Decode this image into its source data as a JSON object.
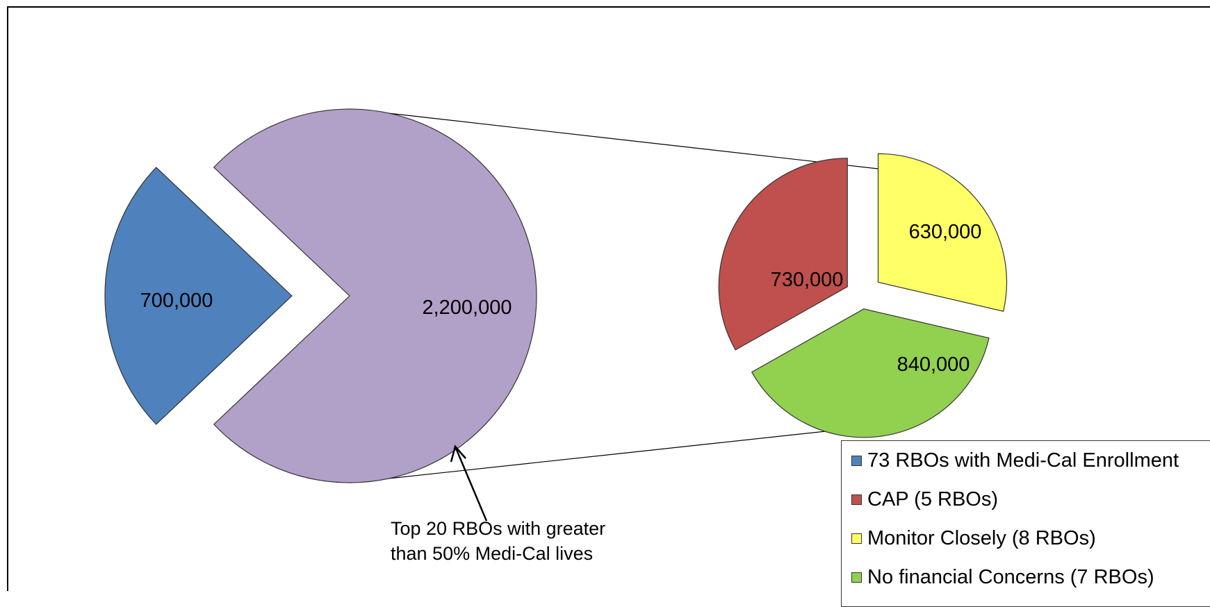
{
  "chart_data": {
    "type": "pie",
    "subtype": "pie-of-pie",
    "main_pie": {
      "slices": [
        {
          "key": "rbo73",
          "value": 700000,
          "label": "700,000",
          "color": "#4F81BD"
        },
        {
          "key": "top20",
          "value": 2200000,
          "label": "2,200,000",
          "color": "#B1A0C7"
        }
      ]
    },
    "secondary_pie": {
      "slices": [
        {
          "key": "monitor",
          "value": 630000,
          "label": "630,000",
          "color": "#FFFF66"
        },
        {
          "key": "nofin",
          "value": 840000,
          "label": "840,000",
          "color": "#92D050"
        },
        {
          "key": "cap",
          "value": 730000,
          "label": "730,000",
          "color": "#C0504D"
        }
      ]
    },
    "legend": {
      "position": "bottom-right",
      "items": [
        {
          "label": "73 RBOs with Medi-Cal Enrollment",
          "color": "#4F81BD"
        },
        {
          "label": "CAP (5 RBOs)",
          "color": "#C0504D"
        },
        {
          "label": "Monitor Closely (8 RBOs)",
          "color": "#FFFF66"
        },
        {
          "label": "No financial Concerns (7 RBOs)",
          "color": "#92D050"
        }
      ]
    },
    "annotation": {
      "lines": [
        "Top 20 RBOs with greater",
        "than 50% Medi-Cal lives"
      ]
    }
  }
}
